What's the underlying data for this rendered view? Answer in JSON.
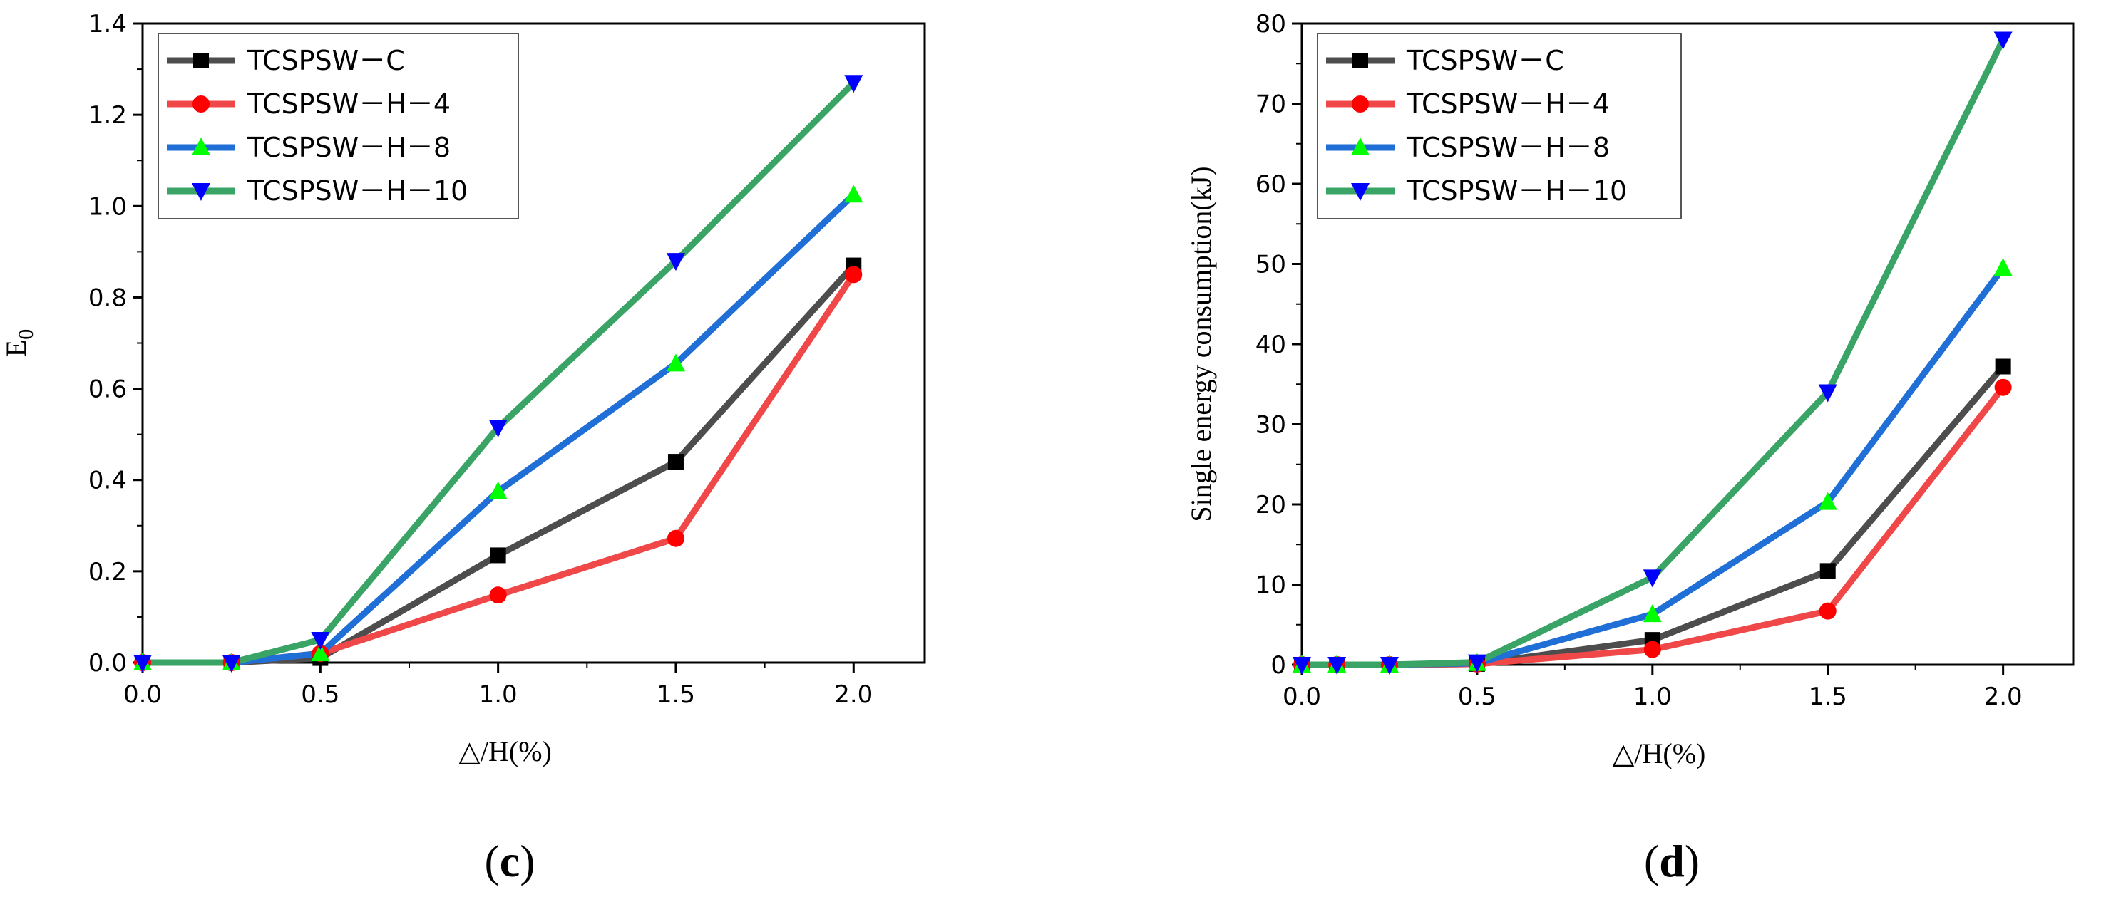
{
  "chart_data": [
    {
      "type": "line",
      "panel_label": "c",
      "xlabel": "△/H(%)",
      "ylabel": "E",
      "ylabel_subscript": "0",
      "xlim": [
        0,
        2.2
      ],
      "ylim": [
        0,
        1.4
      ],
      "xticks": [
        0.0,
        0.5,
        1.0,
        1.5,
        2.0
      ],
      "xtick_labels": [
        "0.0",
        "0.5",
        "1.0",
        "1.5",
        "2.0"
      ],
      "yticks": [
        0.0,
        0.2,
        0.4,
        0.6,
        0.8,
        1.0,
        1.2,
        1.4
      ],
      "ytick_labels": [
        "0.0",
        "0.2",
        "0.4",
        "0.6",
        "0.8",
        "1.0",
        "1.2",
        "1.4"
      ],
      "legend_position": "top-left",
      "series": [
        {
          "name": "TCSPSW－C",
          "color": "#4d4d4d",
          "marker_color": "#000000",
          "marker": "square",
          "x": [
            0,
            0.25,
            0.5,
            1.0,
            1.5,
            2.0
          ],
          "y": [
            0.0,
            0.0,
            0.01,
            0.235,
            0.44,
            0.87
          ]
        },
        {
          "name": "TCSPSW－H－4",
          "color": "#f04848",
          "marker_color": "#ff0000",
          "marker": "circle",
          "x": [
            0,
            0.25,
            0.5,
            1.0,
            1.5,
            2.0
          ],
          "y": [
            0.0,
            0.0,
            0.02,
            0.148,
            0.272,
            0.85
          ]
        },
        {
          "name": "TCSPSW－H－8",
          "color": "#1f6fd6",
          "marker_color": "#00ff00",
          "marker": "triangle-up",
          "x": [
            0,
            0.25,
            0.5,
            1.0,
            1.5,
            2.0
          ],
          "y": [
            0.0,
            0.0,
            0.02,
            0.375,
            0.655,
            1.025
          ]
        },
        {
          "name": "TCSPSW－H－10",
          "color": "#3aa466",
          "marker_color": "#0000ff",
          "marker": "triangle-down",
          "x": [
            0,
            0.25,
            0.5,
            1.0,
            1.5,
            2.0
          ],
          "y": [
            0.0,
            0.0,
            0.05,
            0.515,
            0.88,
            1.27
          ]
        }
      ]
    },
    {
      "type": "line",
      "panel_label": "d",
      "xlabel": "△/H(%)",
      "ylabel": "Single  energy consumption(kJ)",
      "xlim": [
        0,
        2.2
      ],
      "ylim": [
        0,
        80
      ],
      "xticks": [
        0.0,
        0.5,
        1.0,
        1.5,
        2.0
      ],
      "xtick_labels": [
        "0.0",
        "0.5",
        "1.0",
        "1.5",
        "2.0"
      ],
      "yticks": [
        0,
        10,
        20,
        30,
        40,
        50,
        60,
        70,
        80
      ],
      "ytick_labels": [
        "0",
        "10",
        "20",
        "30",
        "40",
        "50",
        "60",
        "70",
        "80"
      ],
      "legend_position": "top-left",
      "series": [
        {
          "name": "TCSPSW－C",
          "color": "#4d4d4d",
          "marker_color": "#000000",
          "marker": "square",
          "x": [
            0,
            0.1,
            0.25,
            0.5,
            1.0,
            1.5,
            2.0
          ],
          "y": [
            0.0,
            0.0,
            0.0,
            0.1,
            3.1,
            11.7,
            37.2
          ]
        },
        {
          "name": "TCSPSW－H－4",
          "color": "#f04848",
          "marker_color": "#ff0000",
          "marker": "circle",
          "x": [
            0,
            0.1,
            0.25,
            0.5,
            1.0,
            1.5,
            2.0
          ],
          "y": [
            0.0,
            0.0,
            0.0,
            0.1,
            1.9,
            6.7,
            34.6
          ]
        },
        {
          "name": "TCSPSW－H－8",
          "color": "#1f6fd6",
          "marker_color": "#00ff00",
          "marker": "triangle-up",
          "x": [
            0,
            0.1,
            0.25,
            0.5,
            1.0,
            1.5,
            2.0
          ],
          "y": [
            0.0,
            0.0,
            0.0,
            0.2,
            6.3,
            20.3,
            49.5
          ]
        },
        {
          "name": "TCSPSW－H－10",
          "color": "#3aa466",
          "marker_color": "#0000ff",
          "marker": "triangle-down",
          "x": [
            0,
            0.1,
            0.25,
            0.5,
            1.0,
            1.5,
            2.0
          ],
          "y": [
            0.0,
            0.0,
            0.0,
            0.3,
            10.9,
            34.0,
            78.0
          ]
        }
      ]
    }
  ]
}
